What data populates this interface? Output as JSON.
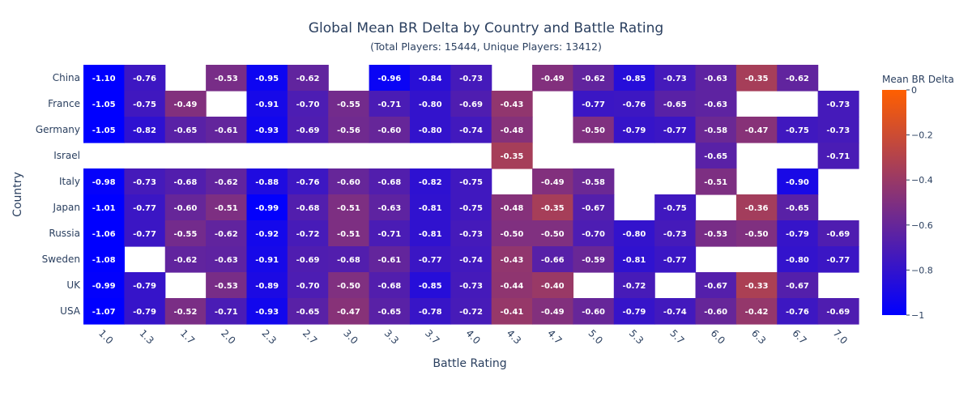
{
  "chart_data": {
    "type": "heatmap",
    "title": "Global Mean BR Delta by Country and Battle Rating",
    "subtitle": "(Total Players: 15444, Unique Players: 13412)",
    "xlabel": "Battle Rating",
    "ylabel": "Country",
    "x": [
      "1.0",
      "1.3",
      "1.7",
      "2.0",
      "2.3",
      "2.7",
      "3.0",
      "3.3",
      "3.7",
      "4.0",
      "4.3",
      "4.7",
      "5.0",
      "5.3",
      "5.7",
      "6.0",
      "6.3",
      "6.7",
      "7.0"
    ],
    "y": [
      "China",
      "France",
      "Germany",
      "Israel",
      "Italy",
      "Japan",
      "Russia",
      "Sweden",
      "UK",
      "USA"
    ],
    "z": [
      [
        -1.1,
        -0.76,
        null,
        -0.53,
        -0.95,
        -0.62,
        null,
        -0.96,
        -0.84,
        -0.73,
        null,
        -0.49,
        -0.62,
        -0.85,
        -0.73,
        -0.63,
        -0.35,
        -0.62,
        null
      ],
      [
        -1.05,
        -0.75,
        -0.49,
        null,
        -0.91,
        -0.7,
        -0.55,
        -0.71,
        -0.8,
        -0.69,
        -0.43,
        null,
        -0.77,
        -0.76,
        -0.65,
        -0.63,
        null,
        null,
        -0.73
      ],
      [
        -1.05,
        -0.82,
        -0.65,
        -0.61,
        -0.93,
        -0.69,
        -0.56,
        -0.6,
        -0.8,
        -0.74,
        -0.48,
        null,
        -0.5,
        -0.79,
        -0.77,
        -0.58,
        -0.47,
        -0.75,
        -0.73
      ],
      [
        null,
        null,
        null,
        null,
        null,
        null,
        null,
        null,
        null,
        null,
        -0.35,
        null,
        null,
        null,
        null,
        -0.65,
        null,
        null,
        -0.71
      ],
      [
        -0.98,
        -0.73,
        -0.68,
        -0.62,
        -0.88,
        -0.76,
        -0.6,
        -0.68,
        -0.82,
        -0.75,
        null,
        -0.49,
        -0.58,
        null,
        null,
        -0.51,
        null,
        -0.9,
        null
      ],
      [
        -1.01,
        -0.77,
        -0.6,
        -0.51,
        -0.99,
        -0.68,
        -0.51,
        -0.63,
        -0.81,
        -0.75,
        -0.48,
        -0.35,
        -0.67,
        null,
        -0.75,
        null,
        -0.36,
        -0.65,
        null
      ],
      [
        -1.06,
        -0.77,
        -0.55,
        -0.62,
        -0.92,
        -0.72,
        -0.51,
        -0.71,
        -0.81,
        -0.73,
        -0.5,
        -0.5,
        -0.7,
        -0.8,
        -0.73,
        -0.53,
        -0.5,
        -0.79,
        -0.69
      ],
      [
        -1.08,
        null,
        -0.62,
        -0.63,
        -0.91,
        -0.69,
        -0.68,
        -0.61,
        -0.77,
        -0.74,
        -0.43,
        -0.66,
        -0.59,
        -0.81,
        -0.77,
        null,
        null,
        -0.8,
        -0.77
      ],
      [
        -0.99,
        -0.79,
        null,
        -0.53,
        -0.89,
        -0.7,
        -0.5,
        -0.68,
        -0.85,
        -0.73,
        -0.44,
        -0.4,
        null,
        -0.72,
        null,
        -0.67,
        -0.33,
        -0.67,
        null
      ],
      [
        -1.07,
        -0.79,
        -0.52,
        -0.71,
        -0.93,
        -0.65,
        -0.47,
        -0.65,
        -0.78,
        -0.72,
        -0.41,
        -0.49,
        -0.6,
        -0.79,
        -0.74,
        -0.6,
        -0.42,
        -0.76,
        -0.69
      ]
    ],
    "zmin": -1,
    "zmax": 0,
    "colorscale": [
      "#0000ff",
      "#ff5f00"
    ],
    "colorbar": {
      "title": "Mean BR Delta",
      "ticks": [
        "0",
        "−0.2",
        "−0.4",
        "−0.6",
        "−0.8",
        "−1"
      ],
      "tick_values": [
        0,
        -0.2,
        -0.4,
        -0.6,
        -0.8,
        -1
      ]
    },
    "grid": false
  }
}
